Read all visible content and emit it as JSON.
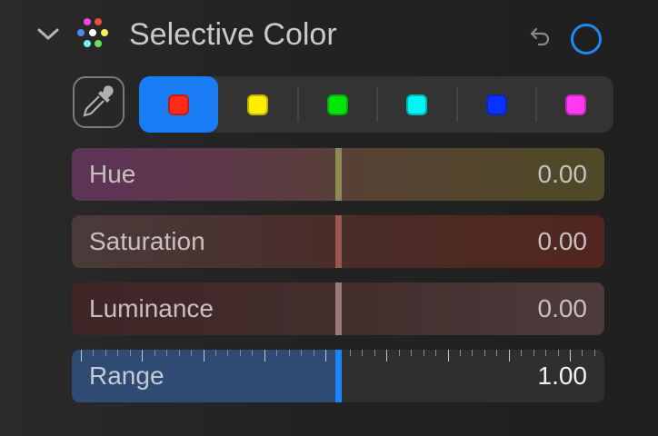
{
  "header": {
    "title": "Selective Color",
    "collapse_icon": "chevron-down-icon",
    "section_icon": "color-dots-icon",
    "reset_icon": "undo-icon",
    "toggle_icon": "circle-toggle-icon",
    "accent": "#1e88f5"
  },
  "eyedropper": {
    "icon": "eyedropper-icon"
  },
  "swatches": [
    {
      "name": "red",
      "color": "#ff2a1a",
      "selected": true
    },
    {
      "name": "yellow",
      "color": "#ffee00"
    },
    {
      "name": "green",
      "color": "#00e60a"
    },
    {
      "name": "cyan",
      "color": "#00f5f5"
    },
    {
      "name": "blue",
      "color": "#0a32ff"
    },
    {
      "name": "magenta",
      "color": "#ff3af0"
    }
  ],
  "sliders": {
    "hue": {
      "label": "Hue",
      "value": "0.00",
      "knob_color": "#8d8a55"
    },
    "saturation": {
      "label": "Saturation",
      "value": "0.00",
      "knob_color": "#9a564f"
    },
    "luminance": {
      "label": "Luminance",
      "value": "0.00",
      "knob_color": "#9a7a7a"
    },
    "range": {
      "label": "Range",
      "value": "1.00",
      "knob_color": "#1a84ff"
    }
  }
}
